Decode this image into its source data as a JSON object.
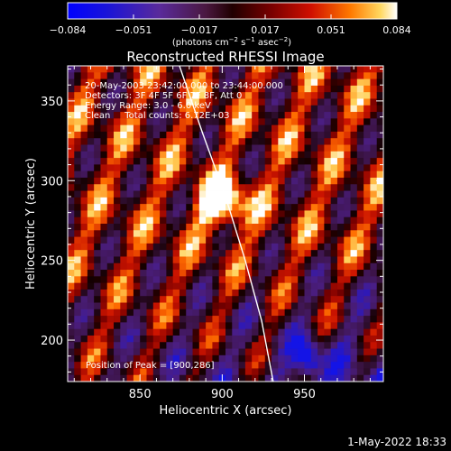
{
  "colorbar": {
    "ticks": [
      "−0.084",
      "−0.051",
      "−0.017",
      "0.017",
      "0.051",
      "0.084"
    ],
    "unit_main": "(photons cm",
    "unit_exp1": "−2",
    "unit_mid": " s",
    "unit_exp2": "−1",
    "unit_end": " asec",
    "unit_exp3": "−2",
    "unit_close": ")"
  },
  "chart_data": {
    "type": "heatmap",
    "title": "Reconstructed RHESSI Image",
    "xlabel": "Heliocentric X (arcsec)",
    "ylabel": "Heliocentric Y (arcsec)",
    "x_ticks": [
      "850",
      "900",
      "950"
    ],
    "y_ticks": [
      "200",
      "250",
      "300",
      "350"
    ],
    "xlim": [
      806,
      998
    ],
    "ylim": [
      174,
      372
    ],
    "colorbar_range": [
      -0.084,
      0.084
    ],
    "annotations": [
      "20-May-2003 23:42:00.000 to 23:44:00.000",
      "Detectors: 3F 4F 5F 6F 7F 8F, Att 0",
      "Energy Range: 3.0 - 6.0 keV",
      "Clean     Total counts: 6.72E+03"
    ],
    "peak_label": "Position of Peak = [900,286]",
    "peak": [
      900,
      286
    ],
    "limb_curve": [
      [
        874,
        372
      ],
      [
        888,
        330
      ],
      [
        902,
        290
      ],
      [
        914,
        250
      ],
      [
        924,
        212
      ],
      [
        931,
        174
      ]
    ]
  },
  "footer": {
    "date": "1-May-2022 18:33"
  }
}
